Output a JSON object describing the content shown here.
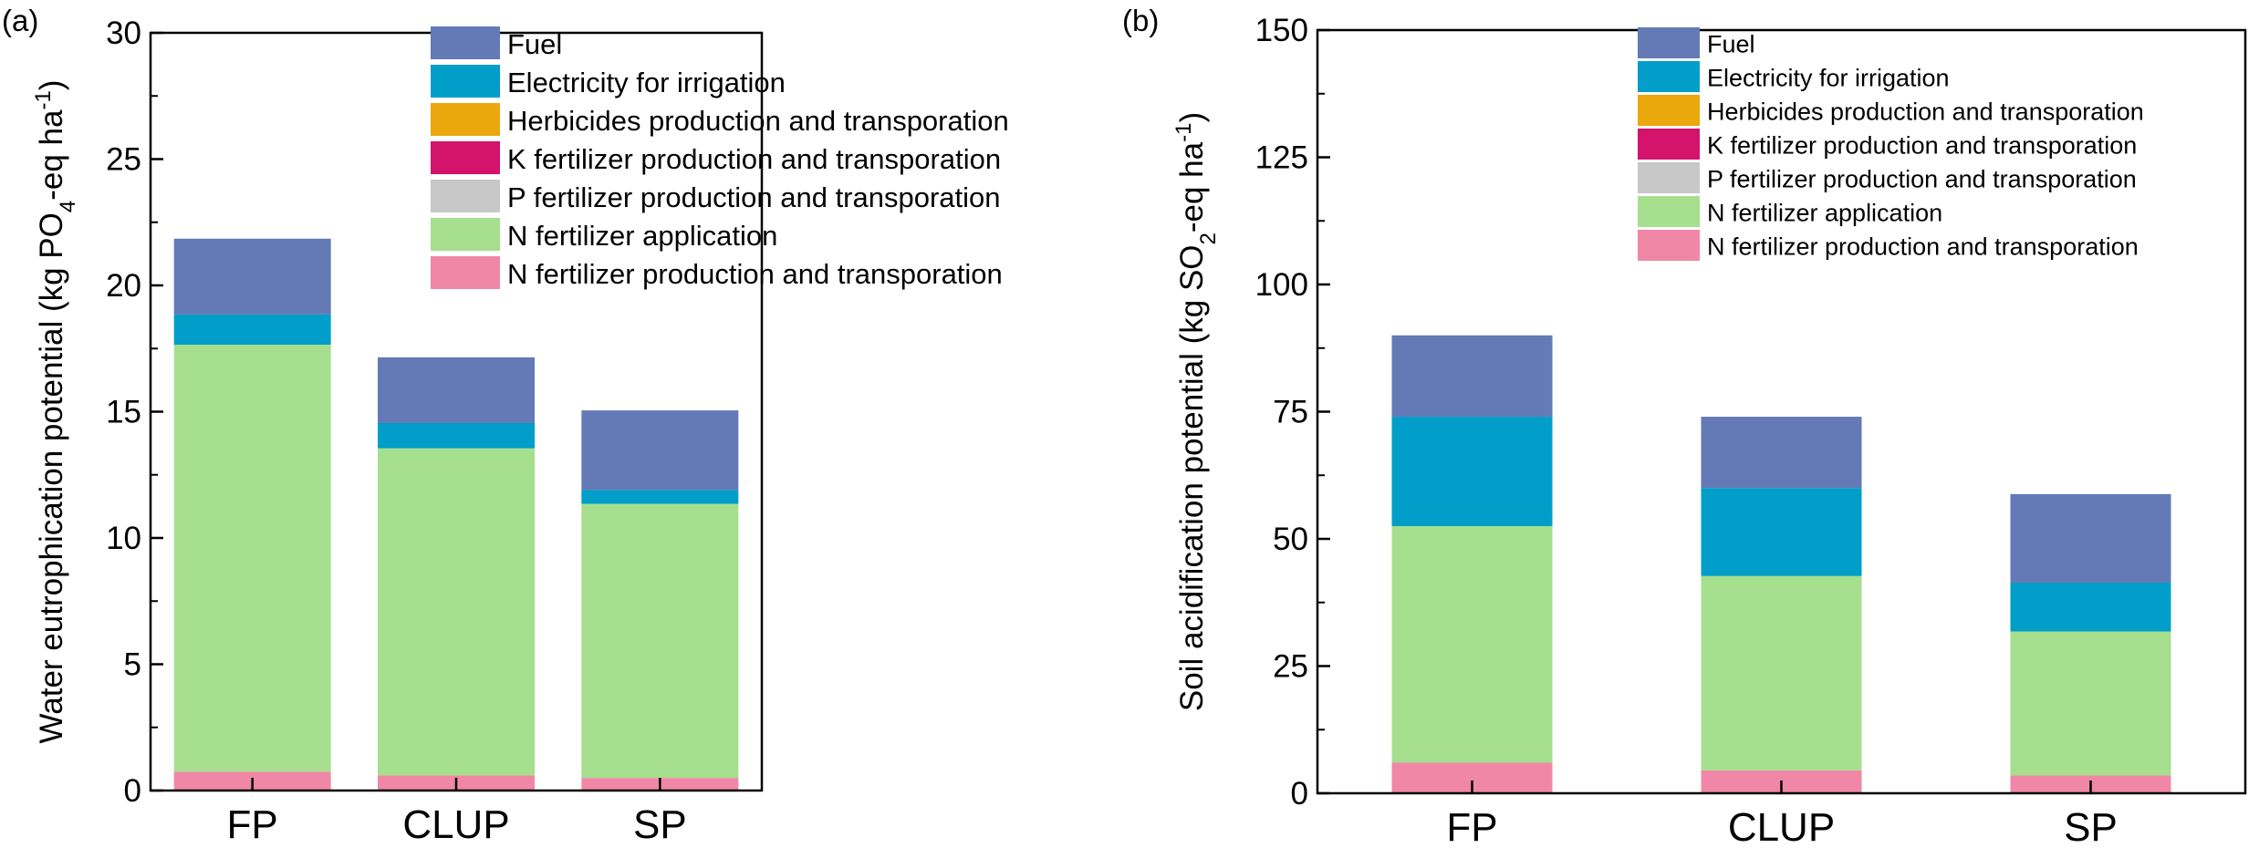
{
  "chart_data": [
    {
      "type": "bar",
      "stacked": true,
      "panel_label": "(a)",
      "ylabel_prefix": "Water eutrophication potential (kg PO",
      "ylabel_sub": "4",
      "ylabel_mid": "-eq ha",
      "ylabel_sup": "-1",
      "ylabel_suffix": ")",
      "categories": [
        "FP",
        "CLUP",
        "SP"
      ],
      "ylim": [
        0,
        30
      ],
      "yticks": [
        "0",
        "5",
        "10",
        "15",
        "20",
        "25",
        "30"
      ],
      "legend_position": "top-right",
      "series": [
        {
          "name": "N fertilizer production and transporation",
          "color": "#f087a6",
          "values": [
            0.75,
            0.6,
            0.5
          ]
        },
        {
          "name": "N fertilizer application",
          "color": "#a6df8e",
          "values": [
            16.9,
            12.95,
            10.85
          ]
        },
        {
          "name": "P fertilizer production and transporation",
          "color": "#c8c8c8",
          "values": [
            0,
            0,
            0
          ]
        },
        {
          "name": "K fertilizer production and transporation",
          "color": "#d4136d",
          "values": [
            0,
            0,
            0
          ]
        },
        {
          "name": "Herbicides production and transporation",
          "color": "#eba80c",
          "values": [
            0,
            0,
            0
          ]
        },
        {
          "name": "Electricity for irrigation",
          "color": "#009ec8",
          "values": [
            1.2,
            1.0,
            0.55
          ]
        },
        {
          "name": "Fuel",
          "color": "#637ab6",
          "values": [
            3.0,
            2.6,
            3.15
          ]
        }
      ]
    },
    {
      "type": "bar",
      "stacked": true,
      "panel_label": "(b)",
      "ylabel_prefix": "Soil acidification potential (kg SO",
      "ylabel_sub": "2",
      "ylabel_mid": "-eq ha",
      "ylabel_sup": "-1",
      "ylabel_suffix": ")",
      "categories": [
        "FP",
        "CLUP",
        "SP"
      ],
      "ylim": [
        0,
        150
      ],
      "yticks": [
        "0",
        "25",
        "50",
        "75",
        "100",
        "125",
        "150"
      ],
      "legend_position": "top-right",
      "series": [
        {
          "name": "N fertilizer production and transporation",
          "color": "#f087a6",
          "values": [
            6.0,
            4.5,
            3.5
          ]
        },
        {
          "name": "N fertilizer application",
          "color": "#a6df8e",
          "values": [
            46.5,
            38.2,
            28.3
          ]
        },
        {
          "name": "P fertilizer production and transporation",
          "color": "#c8c8c8",
          "values": [
            0,
            0,
            0
          ]
        },
        {
          "name": "K fertilizer production and transporation",
          "color": "#d4136d",
          "values": [
            0,
            0,
            0
          ]
        },
        {
          "name": "Herbicides production and transporation",
          "color": "#eba80c",
          "values": [
            0,
            0,
            0
          ]
        },
        {
          "name": "Electricity for irrigation",
          "color": "#009ec8",
          "values": [
            21.5,
            17.3,
            9.6
          ]
        },
        {
          "name": "Fuel",
          "color": "#637ab6",
          "values": [
            16.0,
            14.0,
            17.4
          ]
        }
      ]
    }
  ]
}
